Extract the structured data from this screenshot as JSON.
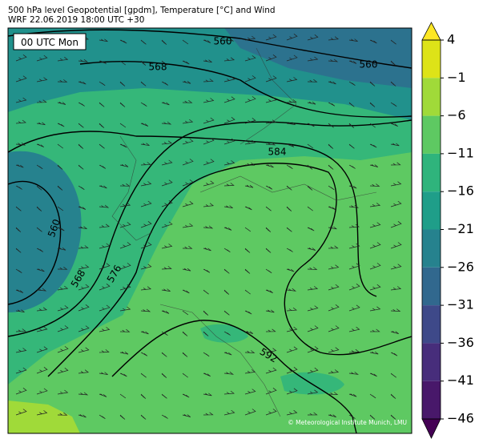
{
  "title": "500 hPa level Geopotential [gpdm], Temperature [°C] and Wind",
  "subtitle": "WRF 22.06.2019 18:00 UTC +30",
  "time_label": "00 UTC Mon",
  "contour_labels": [
    560,
    560,
    568,
    584,
    560,
    568,
    576,
    592
  ],
  "colorbar": {
    "ticks": [
      4,
      {
        "value": -1,
        "label": "−1"
      },
      {
        "value": -6,
        "label": "−6"
      },
      {
        "value": -11,
        "label": "−11"
      },
      {
        "value": -16,
        "label": "−16"
      },
      {
        "value": -21,
        "label": "−21"
      },
      {
        "value": -26,
        "label": "−26"
      },
      {
        "value": -31,
        "label": "−31"
      },
      {
        "value": -36,
        "label": "−36"
      },
      {
        "value": -41,
        "label": "−41"
      },
      {
        "value": -46,
        "label": "−46"
      }
    ],
    "colors": [
      "#dde318",
      "#a0da39",
      "#5ec962",
      "#2fb47c",
      "#1f9e89",
      "#26828e",
      "#31688e",
      "#3e4989",
      "#472d7b",
      "#48186a"
    ],
    "extend_colors": [
      "#fde725",
      "#440154"
    ]
  },
  "credit": "© Meteorological Institute Munich, LMU"
}
